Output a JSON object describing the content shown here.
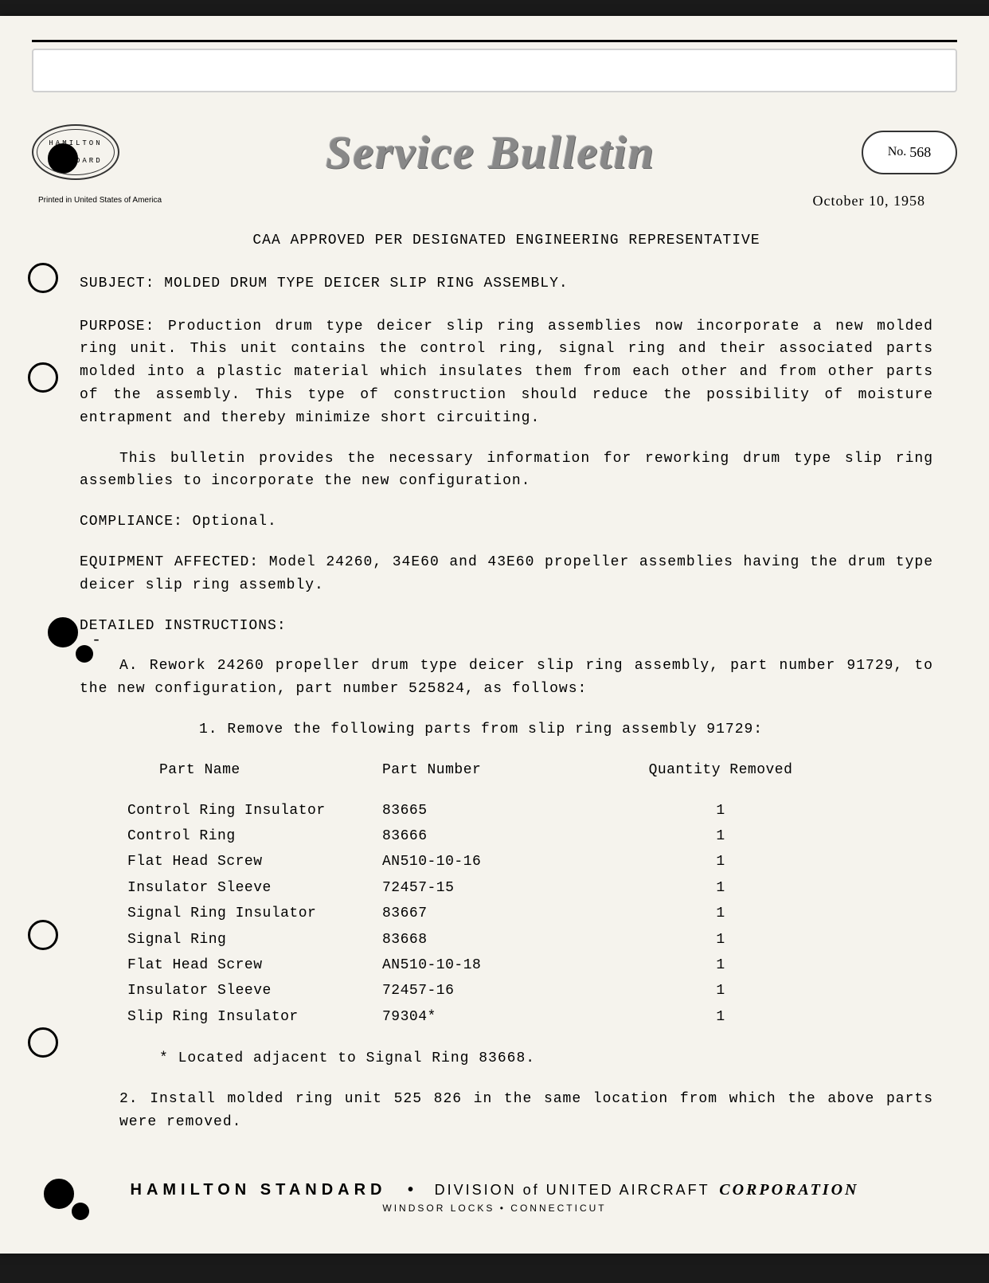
{
  "colors": {
    "page_bg": "#f5f3ed",
    "body_bg": "#1a1a1a",
    "text": "#000000",
    "banner_text": "#888888"
  },
  "header": {
    "logo_top": "HAMILTON",
    "logo_bottom": "STANDARD",
    "banner_title": "Service Bulletin",
    "bulletin_no_label": "No.",
    "bulletin_no_value": "568",
    "printed_text": "Printed in United States of America",
    "date": "October 10, 1958"
  },
  "caa_line": "CAA APPROVED PER DESIGNATED ENGINEERING REPRESENTATIVE",
  "subject": {
    "label": "SUBJECT:",
    "text": "MOLDED DRUM TYPE DEICER SLIP RING ASSEMBLY."
  },
  "purpose": {
    "label": "PURPOSE:",
    "text": "Production drum type deicer slip ring assemblies now incorporate a new molded ring unit. This unit contains the control ring, signal ring and their associated parts molded into a plastic material which insulates them from each other and from other parts of the assembly. This type of construction should reduce the possibility of moisture entrapment and thereby minimize short circuiting."
  },
  "purpose_para2": "This bulletin provides the necessary information for reworking drum type slip ring assemblies to incorporate the new configuration.",
  "compliance": {
    "label": "COMPLIANCE:",
    "text": "Optional."
  },
  "equipment": {
    "label": "EQUIPMENT AFFECTED:",
    "text": "Model 24260, 34E60 and 43E60 propeller assemblies having the drum type deicer slip ring assembly."
  },
  "detailed_label": "DETAILED INSTRUCTIONS:",
  "instruction_a": "A. Rework 24260 propeller drum type deicer slip ring assembly, part number 91729, to the new configuration, part number 525824, as follows:",
  "instruction_1": "1. Remove the following parts from slip ring assembly 91729:",
  "table": {
    "headers": {
      "name": "Part Name",
      "number": "Part Number",
      "qty": "Quantity Removed"
    },
    "rows": [
      {
        "name": "Control Ring Insulator",
        "number": "83665",
        "qty": "1"
      },
      {
        "name": "Control Ring",
        "number": "83666",
        "qty": "1"
      },
      {
        "name": "Flat Head Screw",
        "number": "AN510-10-16",
        "qty": "1"
      },
      {
        "name": "Insulator Sleeve",
        "number": "72457-15",
        "qty": "1"
      },
      {
        "name": "Signal Ring Insulator",
        "number": "83667",
        "qty": "1"
      },
      {
        "name": "Signal Ring",
        "number": "83668",
        "qty": "1"
      },
      {
        "name": "Flat Head Screw",
        "number": "AN510-10-18",
        "qty": "1"
      },
      {
        "name": "Insulator Sleeve",
        "number": "72457-16",
        "qty": "1"
      },
      {
        "name": "Slip Ring Insulator",
        "number": "79304*",
        "qty": "1"
      }
    ]
  },
  "footnote": "* Located adjacent to Signal Ring 83668.",
  "instruction_2": "2. Install molded ring unit 525 826 in the same location from which the above parts were removed.",
  "footer": {
    "company": "HAMILTON STANDARD",
    "bullet": "•",
    "division": "DIVISION of UNITED AIRCRAFT",
    "corp": "CORPORATION",
    "location": "WINDSOR LOCKS • CONNECTICUT"
  }
}
